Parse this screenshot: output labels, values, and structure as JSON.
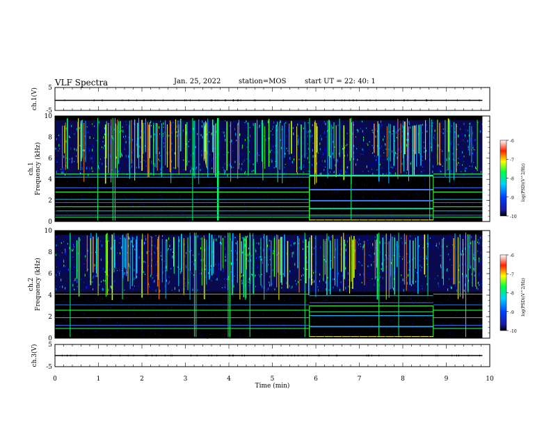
{
  "header": {
    "title": "VLF Spectra",
    "date": "Jan. 25, 2022",
    "station": "station=MOS",
    "start_ut": "start UT =  22: 40: 1"
  },
  "chart_data": [
    {
      "type": "line",
      "panel": "ch1-voltage",
      "ylabel": "ch.1(V)",
      "ylim": [
        -5,
        5
      ],
      "yticks": [
        "5",
        "-5"
      ],
      "x": [
        0,
        9.83
      ],
      "values": [
        0,
        0
      ]
    },
    {
      "type": "heatmap",
      "panel": "ch1-spectrogram",
      "ylabel": "ch.1\nFrequency (kHz)",
      "ylim": [
        0,
        10
      ],
      "yticks": [
        "0",
        "2",
        "4",
        "6",
        "8",
        "10"
      ],
      "xlim": [
        0,
        10
      ],
      "colorbar": {
        "label": "log(PSD)(V^2/Hz)",
        "range": [
          -10,
          -6
        ],
        "ticks": [
          "-6",
          "-7",
          "-8",
          "-9",
          "-10"
        ]
      },
      "tones_kHz": [
        0.4,
        0.6,
        1.0,
        1.4,
        1.8,
        2.1,
        2.8,
        3.2,
        4.2,
        4.5
      ],
      "tone_change_min": [
        5.85,
        8.7
      ]
    },
    {
      "type": "heatmap",
      "panel": "ch2-spectrogram",
      "ylabel": "ch.2\nFrequency (kHz)",
      "ylim": [
        0,
        10
      ],
      "yticks": [
        "0",
        "2",
        "4",
        "6",
        "8",
        "10"
      ],
      "xlim": [
        0,
        10
      ],
      "colorbar": {
        "label": "log(PSD)(V^2/Hz)",
        "range": [
          -10,
          -6
        ],
        "ticks": [
          "-6",
          "-7",
          "-8",
          "-9",
          "-10"
        ]
      },
      "tones_kHz": [
        0.9,
        1.2,
        1.9,
        2.6,
        3.1,
        4.1
      ],
      "tone_change_min": [
        5.85,
        8.7
      ]
    },
    {
      "type": "line",
      "panel": "ch3-voltage",
      "ylabel": "ch.3(V)",
      "ylim": [
        -5,
        5
      ],
      "yticks": [
        "5",
        "-5"
      ],
      "x": [
        0,
        9.83
      ],
      "values": [
        0,
        0
      ]
    }
  ],
  "x_axis": {
    "label": "Time (min)",
    "ticks": [
      "0",
      "1",
      "2",
      "3",
      "4",
      "5",
      "6",
      "7",
      "8",
      "9",
      "10"
    ]
  }
}
